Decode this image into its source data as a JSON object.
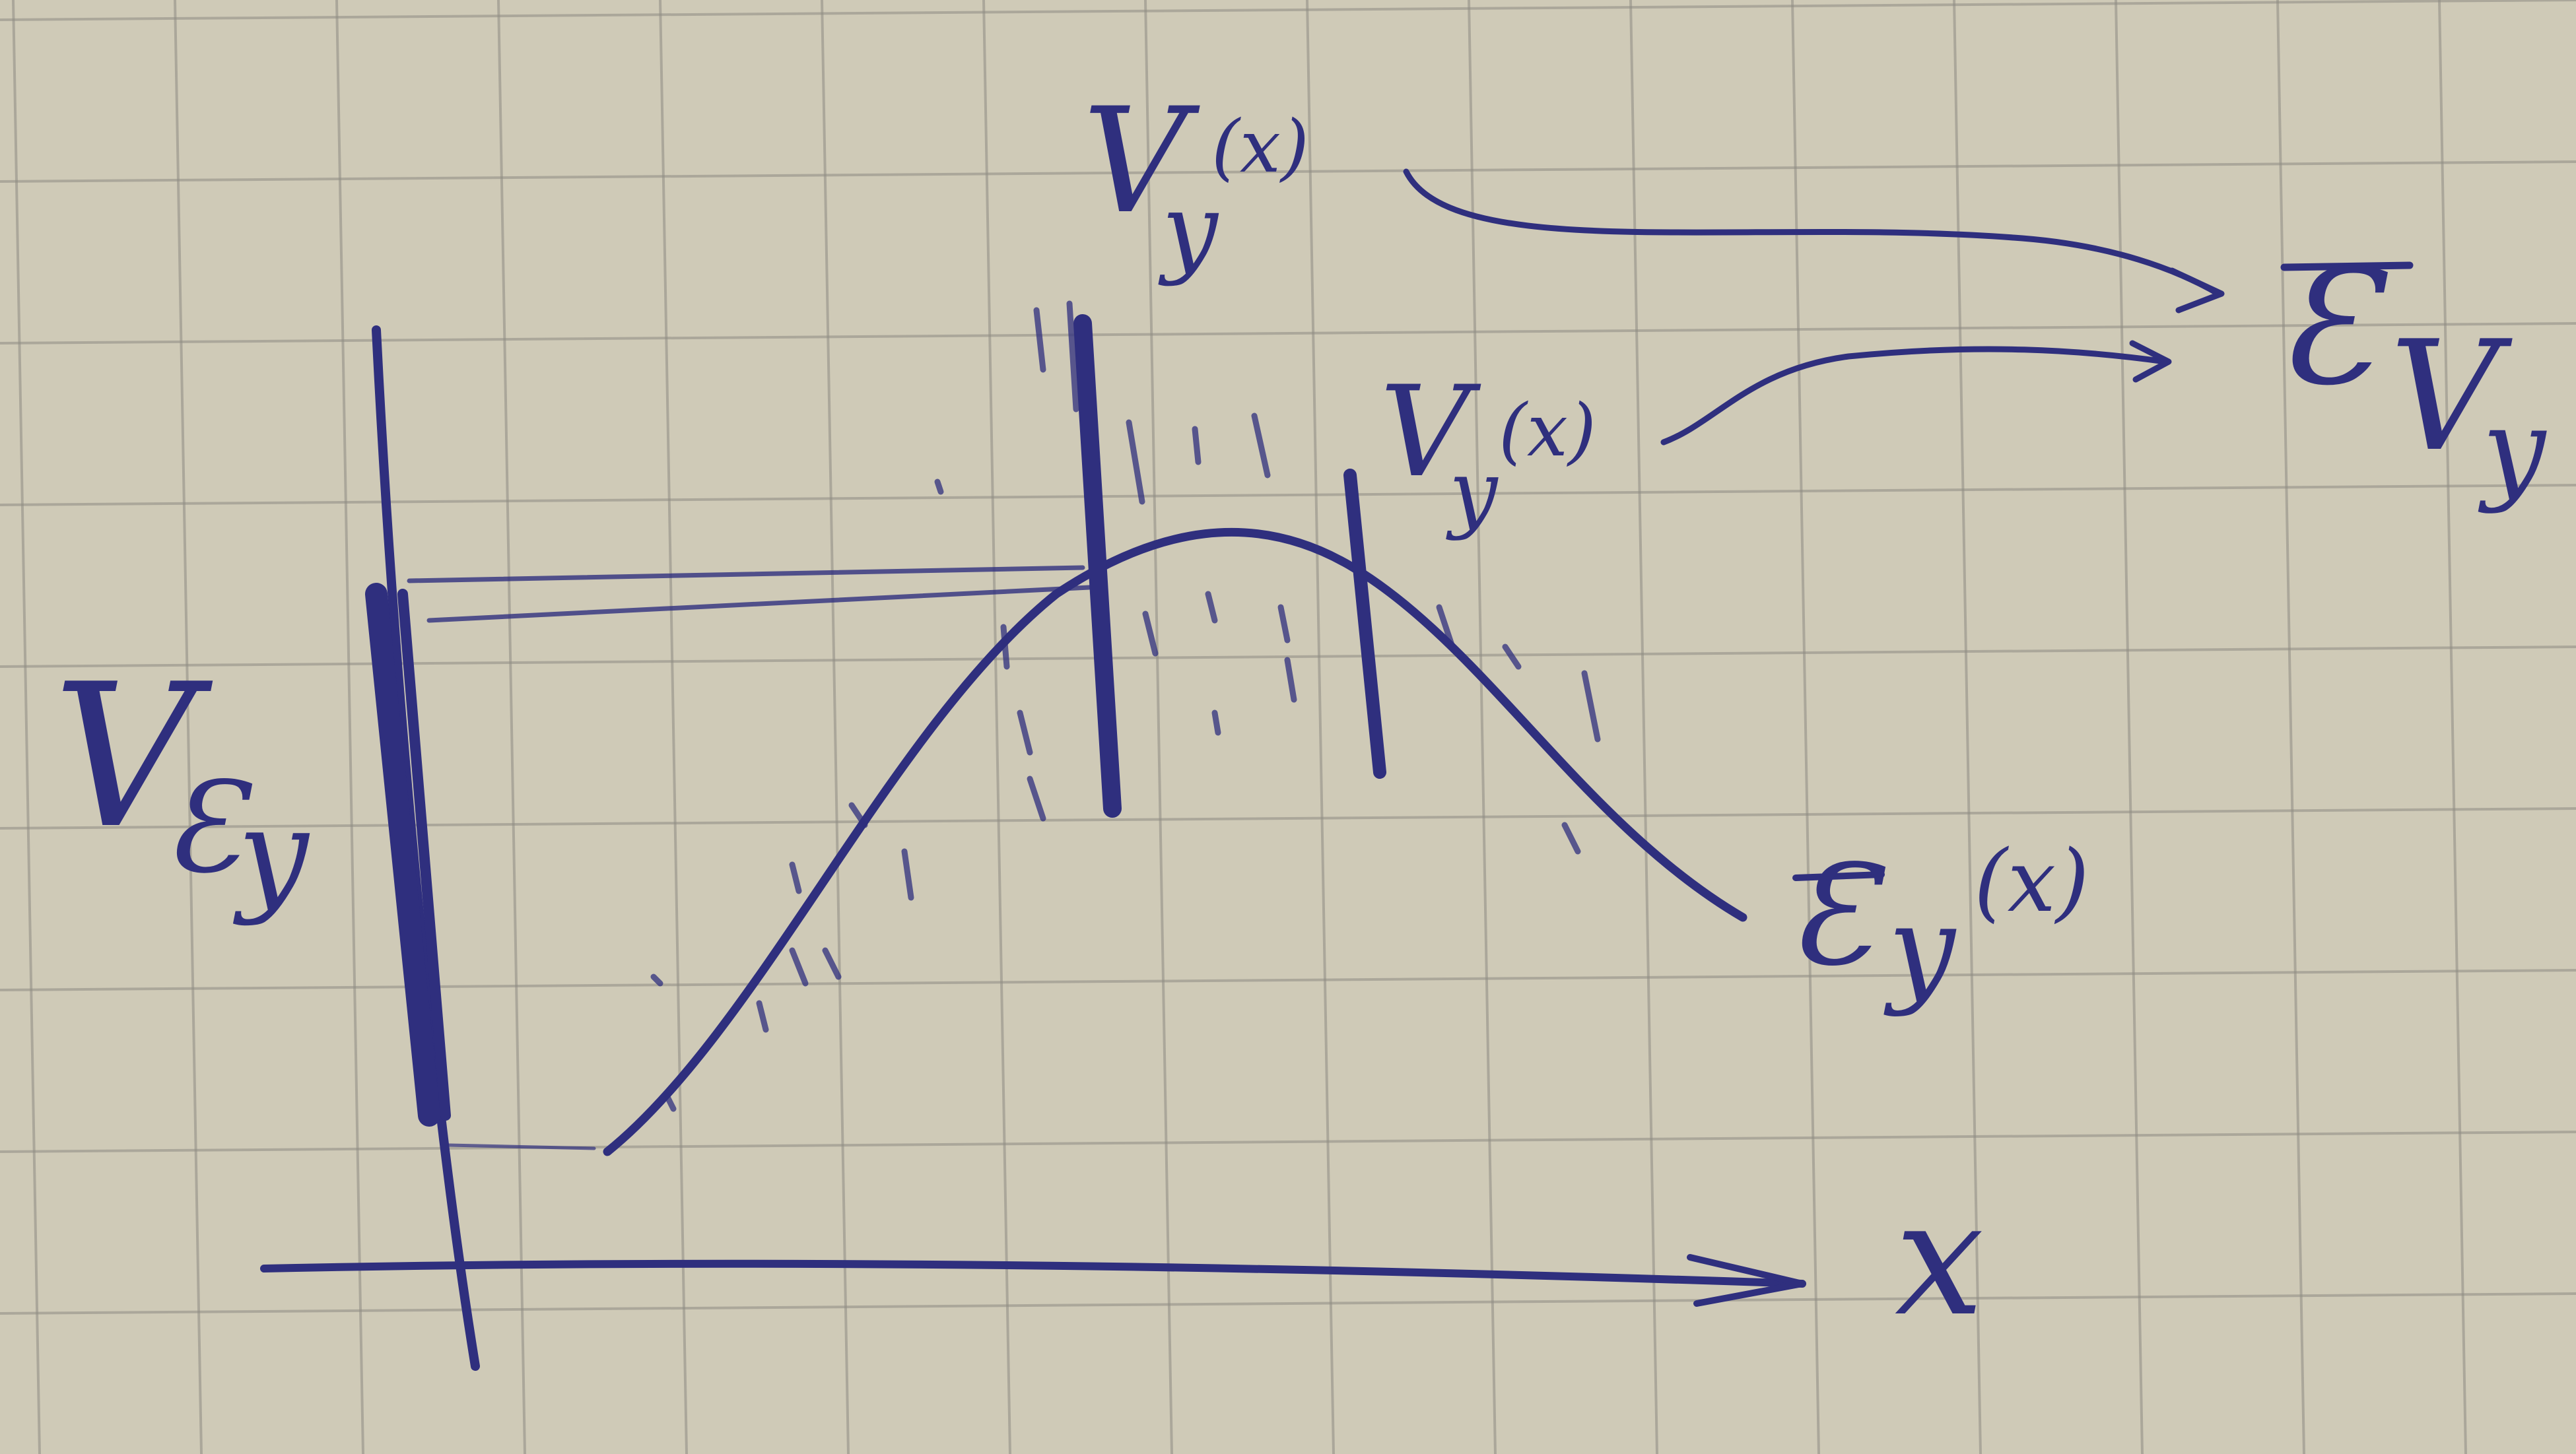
{
  "labels": {
    "v_epsilon_y": "V",
    "v_epsilon_y_sub": "Ɛ",
    "v_epsilon_y_sub2": "y",
    "vy_top": "V",
    "vy_top_sub": "y",
    "vy_top_arg": "(x)",
    "vy_mid": "V",
    "vy_mid_sub": "y",
    "vy_mid_arg": "(x)",
    "epsilon_bar_vy": "Ɛ",
    "epsilon_bar_vy_v": "V",
    "epsilon_bar_vy_sub": "y",
    "epsilon_y_curve": "Ɛ",
    "epsilon_y_curve_sub": "y",
    "epsilon_y_curve_arg": "(x)",
    "x_axis": "x"
  },
  "colors": {
    "paper": "#cfcab7",
    "grid": "#8f8c84",
    "ink": "#2f2f7e",
    "heavy_ink": "#15153a"
  }
}
